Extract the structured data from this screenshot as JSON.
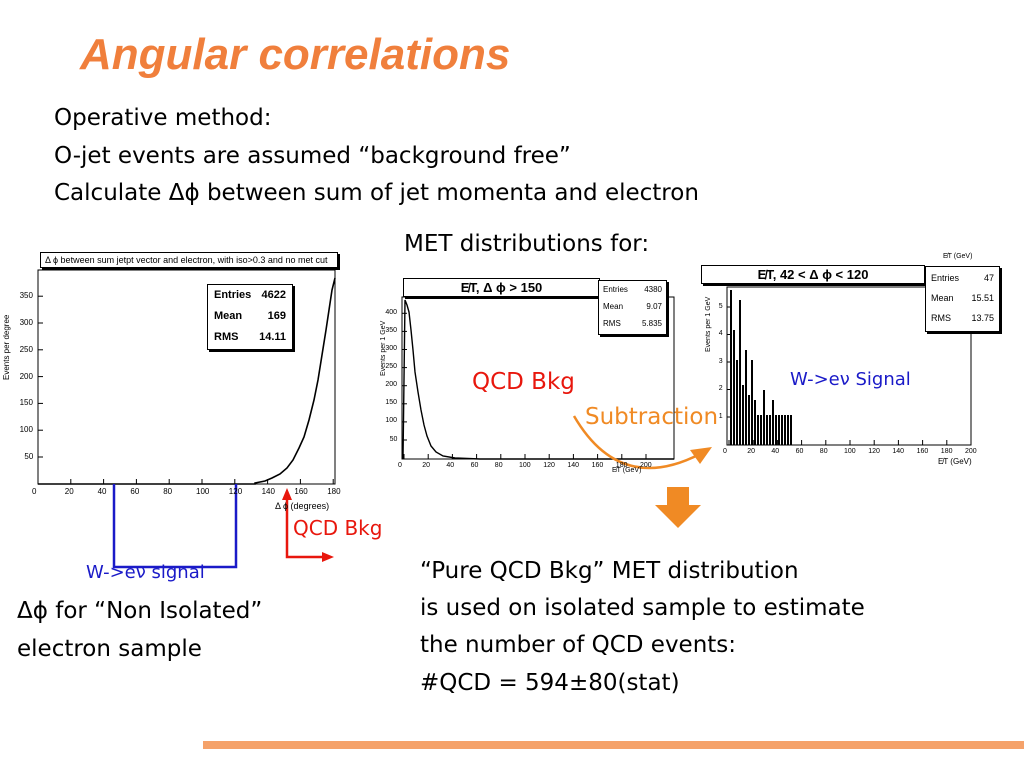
{
  "slide": {
    "title": "Angular correlations",
    "method_lines": [
      "Operative method:",
      "O-jet events are assumed “background free”",
      "Calculate Δϕ between sum of jet momenta and electron"
    ],
    "met_label": "MET distributions for:",
    "left_caption": [
      "Δϕ for “Non Isolated”",
      "electron sample"
    ],
    "conclusion_lines": [
      "“Pure QCD Bkg” MET distribution",
      "is used on isolated sample to estimate",
      "the number of QCD events:",
      "#QCD = 594±80(stat)"
    ],
    "annotations": {
      "qcd_bkg_mid": "QCD Bkg",
      "subtraction": "Subtraction",
      "w_signal_right": "W->eν Signal",
      "qcd_bkg_left": "QCD Bkg",
      "w_signal_left": "W->eν signal"
    }
  },
  "colors": {
    "title": "#f07f3c",
    "qcd_red": "#e8170d",
    "w_blue": "#1a1ac8",
    "arrow_orange": "#f08a24",
    "footer": "#f5a26a"
  },
  "plots": {
    "left": {
      "title": "Δ ϕ between sum jetpt vector and electron, with iso>0.3 and no met cut",
      "ylabel": "Events per degree",
      "xlabel": "Δ ϕ (degrees)",
      "stats": [
        [
          "Entries",
          "4622"
        ],
        [
          "Mean",
          "169"
        ],
        [
          "RMS",
          "14.11"
        ]
      ],
      "xticks": [
        "0",
        "20",
        "40",
        "60",
        "80",
        "100",
        "120",
        "140",
        "160",
        "180"
      ],
      "yticks": [
        "50",
        "100",
        "150",
        "200",
        "250",
        "300",
        "350"
      ]
    },
    "middle": {
      "title": "E̸T, Δ ϕ > 150",
      "ylabel": "Events per 1 GeV",
      "xlabel": "E̸T (GeV)",
      "stats": [
        [
          "Entries",
          "4380"
        ],
        [
          "Mean",
          "9.07"
        ],
        [
          "RMS",
          "5.835"
        ]
      ],
      "xticks": [
        "0",
        "20",
        "40",
        "60",
        "80",
        "100",
        "120",
        "140",
        "160",
        "180",
        "200"
      ],
      "yticks": [
        "50",
        "100",
        "150",
        "200",
        "250",
        "300",
        "350",
        "400"
      ]
    },
    "right": {
      "title": "E̸T, 42 < Δ ϕ < 120",
      "ylabel": "Events per 1 GeV",
      "xlabel": "E̸T (GeV)",
      "top_label": "E̸T (GeV)",
      "stats": [
        [
          "Entries",
          "47"
        ],
        [
          "Mean",
          "15.51"
        ],
        [
          "RMS",
          "13.75"
        ]
      ],
      "xticks": [
        "0",
        "20",
        "40",
        "60",
        "80",
        "100",
        "120",
        "140",
        "160",
        "180",
        "200"
      ],
      "yticks": [
        "1",
        "2",
        "3",
        "4",
        "5"
      ]
    }
  }
}
